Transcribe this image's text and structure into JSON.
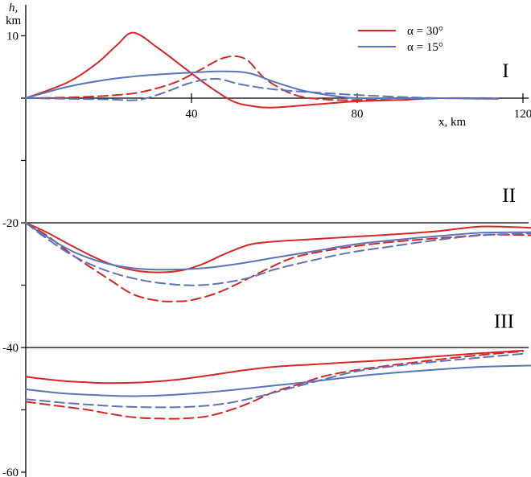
{
  "chart_data": {
    "type": "line",
    "title": "",
    "x_axis": {
      "label": "x, km",
      "ticks": [
        40,
        80,
        120
      ],
      "range": [
        0,
        122
      ]
    },
    "y_axis": {
      "label_line1": "h,",
      "label_line2": "km",
      "ticks": [
        10,
        -20,
        -40,
        -60
      ],
      "minor_ticks": [
        0,
        -10,
        -30,
        -50
      ],
      "range": [
        -60,
        14
      ]
    },
    "reference_lines": [
      0,
      -20,
      -40
    ],
    "legend": {
      "placement": "top-right",
      "entries": [
        {
          "label": "α = 30°",
          "color": "#d62728"
        },
        {
          "label": "α = 15°",
          "color": "#5b75b8"
        }
      ]
    },
    "region_labels": [
      {
        "text": "I",
        "x": 115,
        "y": 4.5
      },
      {
        "text": "II",
        "x": 115,
        "y": -15.5
      },
      {
        "text": "III",
        "x": 113,
        "y": -35.7
      }
    ],
    "series": [
      {
        "group": "I",
        "alpha": 30,
        "style": "solid",
        "color": "#d62728",
        "x": [
          0,
          10,
          17,
          22,
          26,
          32,
          38,
          44,
          50,
          55,
          60,
          70,
          80,
          90,
          100,
          110,
          114
        ],
        "y": [
          0,
          2.5,
          5.5,
          8.5,
          10.5,
          8,
          5,
          2,
          -0.5,
          -1.3,
          -1.5,
          -1,
          -0.5,
          -0.3,
          0,
          0,
          -0.1
        ]
      },
      {
        "group": "I",
        "alpha": 30,
        "style": "dashed",
        "color": "#d62728",
        "x": [
          0,
          10,
          20,
          28,
          36,
          42,
          48,
          53,
          58,
          65,
          72,
          80,
          90,
          100,
          110,
          114
        ],
        "y": [
          0,
          0.1,
          0.4,
          1,
          2.5,
          4.5,
          6.5,
          6.3,
          3,
          0.5,
          -0.2,
          -0.3,
          0,
          0,
          0,
          -0.1
        ]
      },
      {
        "group": "I",
        "alpha": 15,
        "style": "solid",
        "color": "#5b75b8",
        "x": [
          0,
          10,
          20,
          30,
          40,
          48,
          54,
          60,
          67,
          75,
          80,
          90,
          100,
          110,
          114
        ],
        "y": [
          0,
          1.8,
          3,
          3.7,
          4.1,
          4.3,
          4,
          2.6,
          1.2,
          0.3,
          0,
          0,
          0,
          -0.1,
          -0.1
        ]
      },
      {
        "group": "I",
        "alpha": 15,
        "style": "dashed",
        "color": "#5b75b8",
        "x": [
          0,
          10,
          20,
          27,
          33,
          40,
          46,
          52,
          60,
          70,
          80,
          90,
          100,
          110,
          114
        ],
        "y": [
          0,
          -0.1,
          -0.2,
          -0.3,
          0.8,
          2.5,
          3.1,
          2.2,
          1.4,
          0.9,
          0.5,
          0.2,
          0,
          0,
          -0.1
        ]
      },
      {
        "group": "II",
        "alpha": 30,
        "style": "solid",
        "color": "#d62728",
        "x": [
          0,
          5,
          12,
          20,
          28,
          36,
          42,
          48,
          54,
          60,
          70,
          80,
          90,
          100,
          110,
          122
        ],
        "y": [
          -20,
          -21.5,
          -24,
          -26.5,
          -27.8,
          -27.8,
          -26.8,
          -25,
          -23.5,
          -23,
          -22.6,
          -22.2,
          -21.8,
          -21.3,
          -20.6,
          -20.8
        ]
      },
      {
        "group": "II",
        "alpha": 30,
        "style": "dashed",
        "color": "#d62728",
        "x": [
          0,
          5,
          12,
          20,
          26,
          32,
          36,
          40,
          46,
          52,
          58,
          65,
          75,
          85,
          95,
          105,
          112,
          122
        ],
        "y": [
          -20,
          -22,
          -25.5,
          -29,
          -31.5,
          -32.5,
          -32.6,
          -32.4,
          -31.3,
          -29.5,
          -27.5,
          -25.5,
          -24.2,
          -23.3,
          -22.7,
          -22.2,
          -21.9,
          -22
        ]
      },
      {
        "group": "II",
        "alpha": 15,
        "style": "solid",
        "color": "#5b75b8",
        "x": [
          0,
          5,
          12,
          20,
          28,
          36,
          44,
          52,
          60,
          70,
          80,
          90,
          100,
          110,
          122
        ],
        "y": [
          -20,
          -22.2,
          -24.8,
          -26.6,
          -27.4,
          -27.5,
          -27.2,
          -26.5,
          -25.6,
          -24.5,
          -23.4,
          -22.7,
          -22.1,
          -21.6,
          -21.5
        ]
      },
      {
        "group": "II",
        "alpha": 15,
        "style": "dashed",
        "color": "#5b75b8",
        "x": [
          0,
          5,
          12,
          20,
          28,
          36,
          42,
          48,
          54,
          60,
          68,
          78,
          88,
          100,
          110,
          122
        ],
        "y": [
          -20,
          -22.5,
          -25.5,
          -27.8,
          -29.2,
          -29.9,
          -30,
          -29.6,
          -28.8,
          -27.5,
          -26.2,
          -24.8,
          -23.8,
          -22.7,
          -22,
          -21.7
        ]
      },
      {
        "group": "III",
        "alpha": 30,
        "style": "solid",
        "color": "#d62728",
        "x": [
          0,
          8,
          15,
          20,
          28,
          36,
          44,
          52,
          60,
          70,
          80,
          90,
          100,
          110,
          120
        ],
        "y": [
          -44.7,
          -45.3,
          -45.6,
          -45.7,
          -45.6,
          -45.2,
          -44.5,
          -43.7,
          -43.1,
          -42.7,
          -42.3,
          -41.9,
          -41.4,
          -40.9,
          -40.5
        ]
      },
      {
        "group": "III",
        "alpha": 30,
        "style": "dashed",
        "color": "#d62728",
        "x": [
          0,
          8,
          15,
          20,
          26,
          32,
          38,
          44,
          50,
          55,
          60,
          66,
          72,
          80,
          90,
          100,
          110,
          120
        ],
        "y": [
          -48.7,
          -49.4,
          -50,
          -50.6,
          -51.2,
          -51.4,
          -51.4,
          -51,
          -49.9,
          -48.6,
          -47.1,
          -45.9,
          -44.6,
          -43.6,
          -42.7,
          -41.9,
          -41.2,
          -40.6
        ]
      },
      {
        "group": "III",
        "alpha": 15,
        "style": "solid",
        "color": "#5b75b8",
        "x": [
          0,
          8,
          16,
          24,
          32,
          40,
          50,
          60,
          70,
          80,
          90,
          100,
          110,
          122
        ],
        "y": [
          -46.7,
          -47.3,
          -47.6,
          -47.8,
          -47.7,
          -47.4,
          -46.8,
          -46.1,
          -45.4,
          -44.6,
          -44,
          -43.5,
          -43.1,
          -42.9
        ]
      },
      {
        "group": "III",
        "alpha": 15,
        "style": "dashed",
        "color": "#5b75b8",
        "x": [
          0,
          8,
          16,
          24,
          32,
          40,
          48,
          56,
          64,
          72,
          80,
          90,
          100,
          110,
          120
        ],
        "y": [
          -48.3,
          -48.8,
          -49.2,
          -49.5,
          -49.6,
          -49.5,
          -49,
          -47.9,
          -46.5,
          -45.1,
          -43.8,
          -42.9,
          -42.2,
          -41.6,
          -41
        ]
      }
    ]
  }
}
